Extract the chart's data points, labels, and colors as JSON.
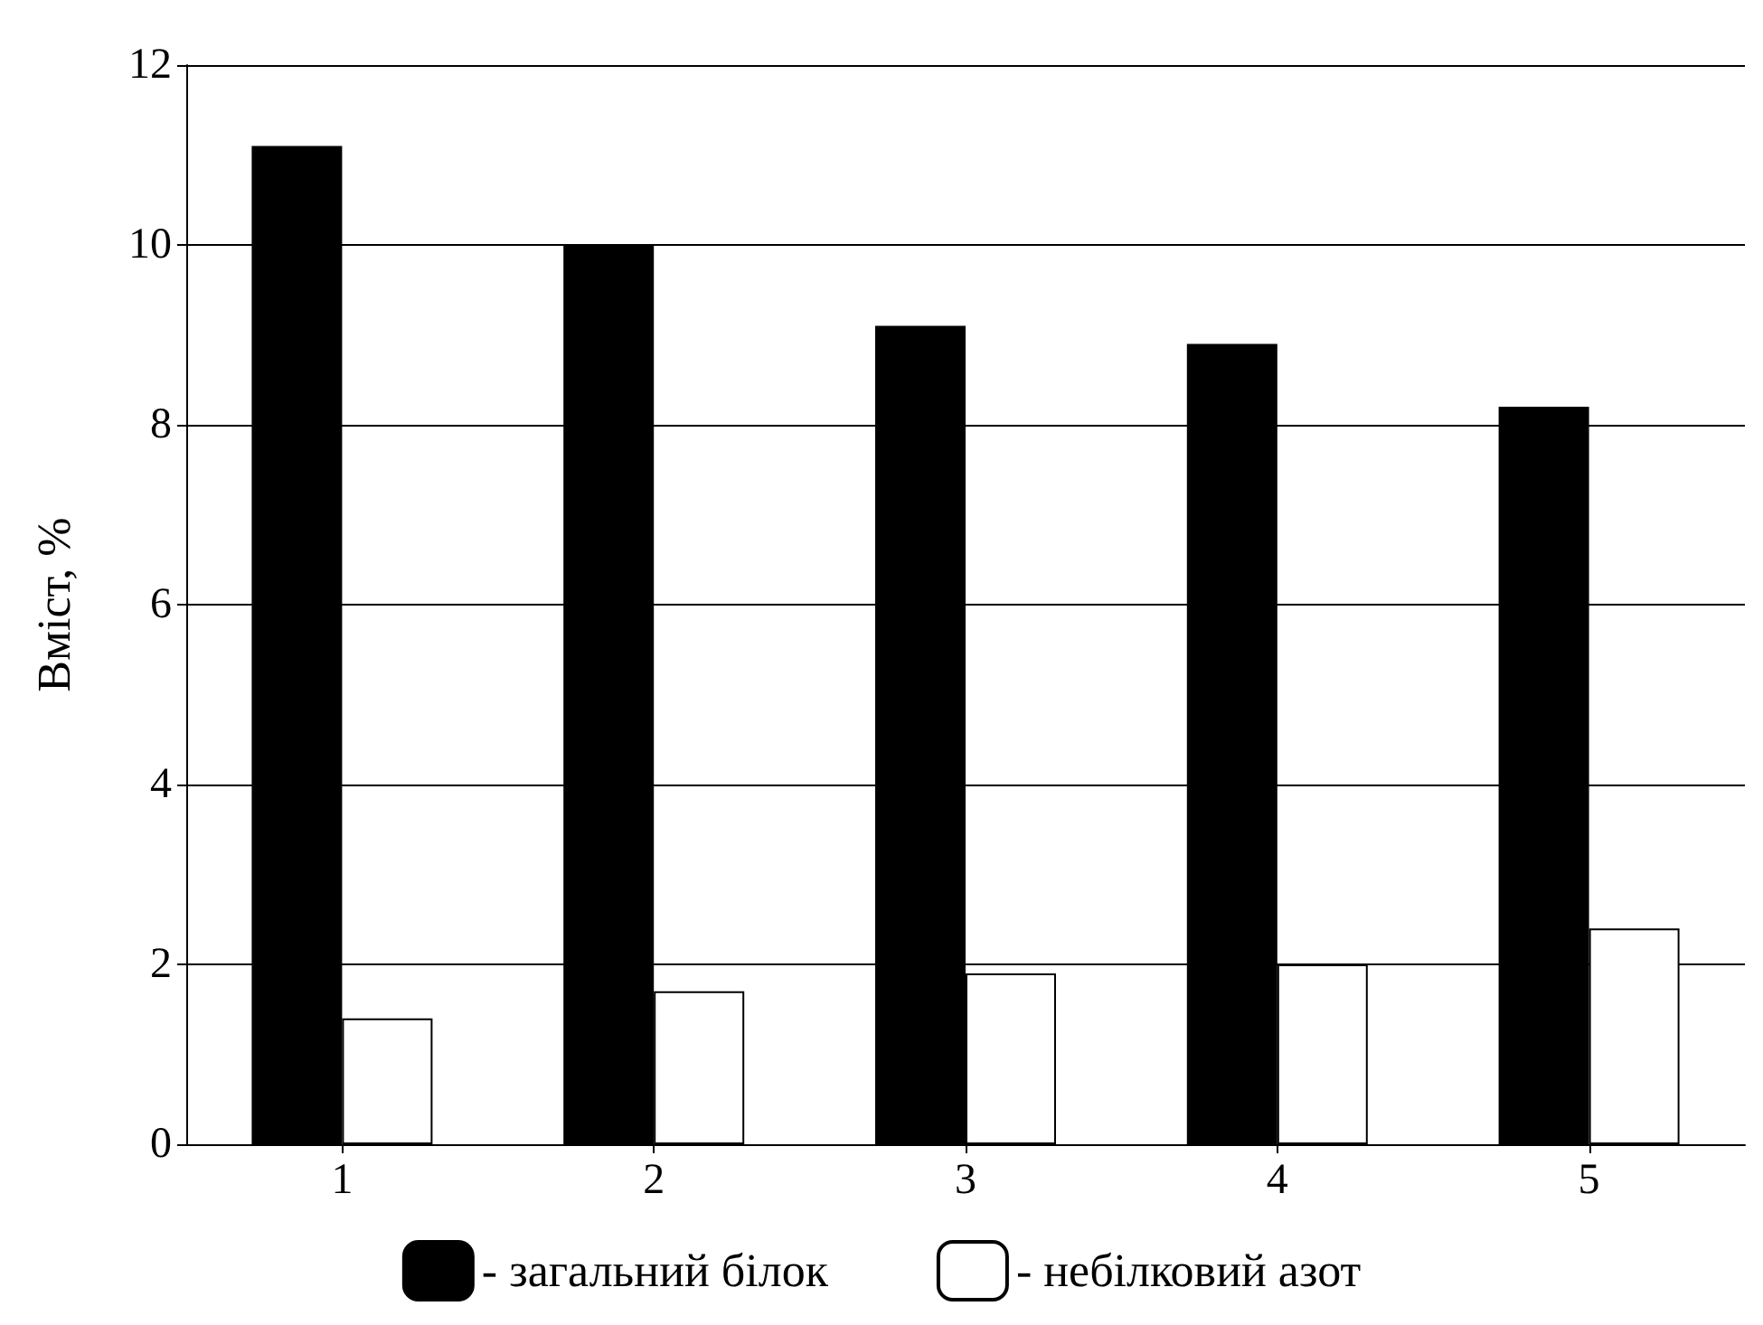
{
  "chart_data": {
    "type": "bar",
    "ylabel": "Вміст, %",
    "categories": [
      "1",
      "2",
      "3",
      "4",
      "5"
    ],
    "series": [
      {
        "name": "- загальний білок",
        "color": "#000000",
        "values": [
          11.1,
          10.0,
          9.1,
          8.9,
          8.2
        ]
      },
      {
        "name": "- небілковий азот",
        "color": "#ffffff",
        "values": [
          1.4,
          1.7,
          1.9,
          2.0,
          2.4
        ]
      }
    ],
    "ylim": [
      0,
      12
    ],
    "yticks": [
      0,
      2,
      4,
      6,
      8,
      10,
      12
    ],
    "grid": "y",
    "legend": "bottom"
  }
}
